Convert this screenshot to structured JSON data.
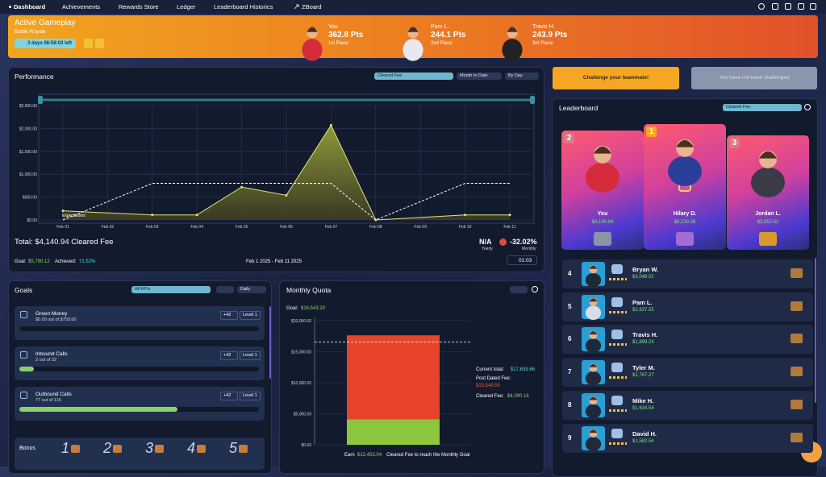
{
  "nav": {
    "items": [
      "Dashboard",
      "Achievements",
      "Rewards Store",
      "Ledger",
      "Leaderboard Historics",
      "ZBoard"
    ]
  },
  "banner": {
    "title": "Active Gameplay",
    "mode": "Battle Royale",
    "timer": "3 days 08:58:03 left",
    "podium": [
      {
        "name": "You",
        "points": "362.8 Pts",
        "place": "1st Place"
      },
      {
        "name": "Pam L.",
        "points": "244.1 Pts",
        "place": "2nd Place"
      },
      {
        "name": "Travis H.",
        "points": "243.9 Pts",
        "place": "3rd Place"
      }
    ]
  },
  "performance": {
    "title": "Performance",
    "filters": [
      "Cleared Fee",
      "Month to Date",
      "By Day"
    ],
    "chart": {
      "type": "area",
      "categories": [
        "Feb 01",
        "Feb 02",
        "Feb 03",
        "Feb 04",
        "Feb 05",
        "Feb 06",
        "Feb 07",
        "Feb 08",
        "Feb 09",
        "Feb 10",
        "Feb 11"
      ],
      "ylim": [
        0,
        2500
      ],
      "yticks": [
        {
          "value": 0,
          "label": "$0.00"
        },
        {
          "value": 500,
          "label": "$500.00"
        },
        {
          "value": 1000,
          "label": "$1,000.00"
        },
        {
          "value": 1500,
          "label": "$1,500.00"
        },
        {
          "value": 2000,
          "label": "$2,000.00"
        },
        {
          "value": 2500,
          "label": "$2,500.00"
        }
      ],
      "grid": true,
      "actual": {
        "color": "#dfe67a",
        "x": [
          "Feb 01",
          "Feb 03",
          "Feb 04",
          "Feb 05",
          "Feb 06",
          "Feb 07",
          "Feb 08",
          "Feb 10",
          "Feb 11"
        ],
        "values": [
          200,
          110,
          110,
          720,
          540,
          2070,
          0,
          110,
          110
        ]
      },
      "expectations": {
        "name": "Expectations",
        "color": "#ffffff",
        "x": [
          "Feb 01",
          "Feb 03",
          "Feb 04",
          "Feb 05",
          "Feb 06",
          "Feb 07",
          "Feb 08",
          "Feb 10",
          "Feb 11"
        ],
        "values": [
          0,
          800,
          800,
          800,
          800,
          800,
          0,
          800,
          800
        ]
      }
    },
    "summary": {
      "total": "Total: $4,140.94 Cleared Fee",
      "goal_label": "Goal:",
      "goal": "$5,790.12",
      "achieved_label": "Achieved:",
      "achieved": "71.52%",
      "range": "Feb 1 2025 - Feb 11 2025",
      "yearly": "N/A",
      "yearly_label": "Yearly",
      "monthly": "-32.02%",
      "monthly_label": "Monthly",
      "timer": "01:03"
    }
  },
  "goals": {
    "title": "Goals",
    "filters": [
      "All KPIs",
      "Daily"
    ],
    "items": [
      {
        "name": "Green Money",
        "progress_text": "$0.00 out of $759.00",
        "reward": "+42",
        "level": "Level 1",
        "progress": 0
      },
      {
        "name": "Inbound Calls",
        "progress_text": "2 out of 32",
        "reward": "+42",
        "level": "Level 1",
        "progress": 6
      },
      {
        "name": "Outbound Calls",
        "progress_text": "77 out of 116",
        "reward": "+42",
        "level": "Level 1",
        "progress": 66
      }
    ],
    "bonus": {
      "title": "Bonus",
      "levels": [
        "1",
        "2",
        "3",
        "4",
        "5"
      ]
    }
  },
  "quota": {
    "title": "Monthly Quota",
    "goal_label": "Goal:",
    "chart": {
      "type": "stacked-bar",
      "ylim": [
        0,
        20000
      ],
      "yticks": [
        {
          "value": 0,
          "label": "$0.00"
        },
        {
          "value": 5000,
          "label": "$5,000.00"
        },
        {
          "value": 10000,
          "label": "$10,000.00"
        },
        {
          "value": 15000,
          "label": "$15,000.00"
        },
        {
          "value": 20000,
          "label": "$20,000.00"
        }
      ],
      "goal": {
        "value": 16543.2,
        "label": "$16,543.20"
      },
      "series": [
        {
          "name": "Cleared Fee:",
          "color": "#8cc63f",
          "values": [
            4090.16
          ],
          "value_labels": [
            "$4,090.16"
          ]
        },
        {
          "name": "Post Dated Fee:",
          "color": "#e8442c",
          "values": [
            13549.5
          ],
          "value_labels": [
            "$13,549.50"
          ]
        }
      ]
    },
    "current_label": "Current total:",
    "current": "$17,639.66",
    "footer": [
      "Earn",
      "$12,453.04",
      "Cleared Fee to reach the Monthly Goal"
    ]
  },
  "challenge": {
    "primary": "Challenge your teammate!",
    "status": "You have not been challenged"
  },
  "leaderboard": {
    "title": "Leaderboard",
    "filter": "Cleared Fee",
    "top": [
      {
        "rank": "2",
        "name": "You",
        "amount": "$4,140.94"
      },
      {
        "rank": "1",
        "name": "Hilary D.",
        "amount": "$6,230.38"
      },
      {
        "rank": "3",
        "name": "Jordan L.",
        "amount": "$3,952.62"
      }
    ],
    "rows": [
      {
        "rank": "4",
        "name": "Bryan W.",
        "amount": "$3,048.02"
      },
      {
        "rank": "5",
        "name": "Pam L.",
        "amount": "$2,637.55"
      },
      {
        "rank": "6",
        "name": "Travis H.",
        "amount": "$1,899.24"
      },
      {
        "rank": "7",
        "name": "Tyler M.",
        "amount": "$1,767.27"
      },
      {
        "rank": "8",
        "name": "Mike H.",
        "amount": "$1,634.54"
      },
      {
        "rank": "9",
        "name": "David H.",
        "amount": "$1,582.54"
      }
    ]
  }
}
